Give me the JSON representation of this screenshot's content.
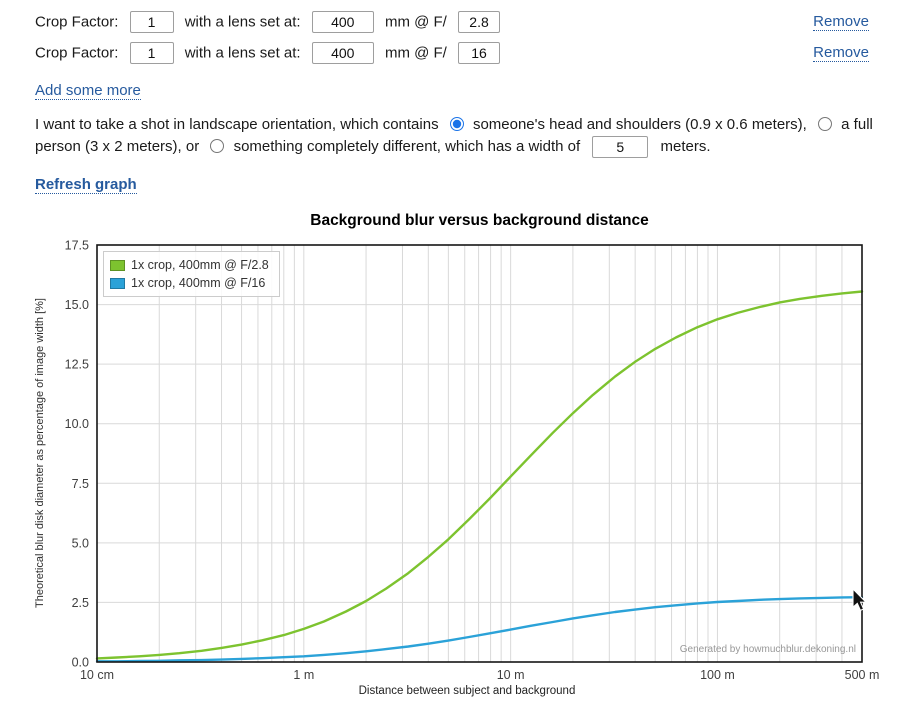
{
  "lens_rows": [
    {
      "label_prefix": "Crop Factor:",
      "crop_factor": "1",
      "label_mid": "with a lens set at:",
      "focal_length": "400",
      "label_aperture": "mm @ F/",
      "aperture": "2.8",
      "remove_label": "Remove"
    },
    {
      "label_prefix": "Crop Factor:",
      "crop_factor": "1",
      "label_mid": "with a lens set at:",
      "focal_length": "400",
      "label_aperture": "mm @ F/",
      "aperture": "16",
      "remove_label": "Remove"
    }
  ],
  "add_more_label": "Add some more",
  "framing": {
    "intro": "I want to take a shot in landscape orientation, which contains",
    "option_head": "someone's head and shoulders (0.9 x 0.6 meters),",
    "option_person": "a full person (3 x 2 meters), or",
    "option_custom": "something completely different, which has a width of",
    "custom_width": "5",
    "outro": "meters.",
    "selected_option": "head_and_shoulders"
  },
  "refresh_label": "Refresh graph",
  "colors": {
    "link": "#265a9e",
    "series_green": "#7dc32f",
    "series_blue": "#2ba2d8",
    "grid": "#d9d9d9",
    "frame": "#151515",
    "tick_text": "#3f3f3f",
    "radio_accent": "#1a73e8",
    "watermark_text": "#989898"
  },
  "chart_data": {
    "type": "line",
    "title": "Background blur versus background distance",
    "xlabel": "Distance between subject and background",
    "ylabel": "Theoretical blur disk diameter as percentage of image width [%]",
    "x_scale": "log",
    "xlim": [
      0.1,
      500
    ],
    "ylim": [
      0,
      17.5
    ],
    "grid": true,
    "legend_position": "top-left",
    "watermark": "Generated by howmuchblur.dekoning.nl",
    "xticks": [
      {
        "v": 0.1,
        "label": "10 cm"
      },
      {
        "v": 1,
        "label": "1 m"
      },
      {
        "v": 10,
        "label": "10 m"
      },
      {
        "v": 100,
        "label": "100 m"
      },
      {
        "v": 500,
        "label": "500 m"
      }
    ],
    "yticks": [
      {
        "v": 0,
        "label": "0.0"
      },
      {
        "v": 2.5,
        "label": "2.5"
      },
      {
        "v": 5,
        "label": "5.0"
      },
      {
        "v": 7.5,
        "label": "7.5"
      },
      {
        "v": 10,
        "label": "10.0"
      },
      {
        "v": 12.5,
        "label": "12.5"
      },
      {
        "v": 15,
        "label": "15.0"
      },
      {
        "v": 17.5,
        "label": "17.5"
      }
    ],
    "x": [
      0.1,
      0.125,
      0.16,
      0.2,
      0.25,
      0.32,
      0.4,
      0.5,
      0.63,
      0.8,
      1,
      1.25,
      1.6,
      2,
      2.5,
      3.2,
      4,
      5,
      6.3,
      8,
      10,
      12.5,
      16,
      20,
      25,
      32,
      40,
      50,
      63,
      80,
      100,
      125,
      160,
      200,
      250,
      320,
      400,
      500
    ],
    "series": [
      {
        "name": "1x crop, 400mm @ F/2.8",
        "color": "#7dc32f",
        "values": [
          0.15,
          0.19,
          0.24,
          0.3,
          0.37,
          0.47,
          0.59,
          0.73,
          0.91,
          1.13,
          1.39,
          1.7,
          2.12,
          2.56,
          3.08,
          3.73,
          4.41,
          5.15,
          5.99,
          6.9,
          7.78,
          8.66,
          9.62,
          10.44,
          11.21,
          11.98,
          12.6,
          13.14,
          13.62,
          14.05,
          14.38,
          14.65,
          14.9,
          15.09,
          15.24,
          15.37,
          15.47,
          15.55
        ]
      },
      {
        "name": "1x crop, 400mm @ F/16",
        "color": "#2ba2d8",
        "values": [
          0.03,
          0.03,
          0.04,
          0.05,
          0.07,
          0.08,
          0.1,
          0.13,
          0.16,
          0.2,
          0.24,
          0.3,
          0.37,
          0.45,
          0.54,
          0.65,
          0.77,
          0.9,
          1.05,
          1.21,
          1.36,
          1.52,
          1.68,
          1.83,
          1.96,
          2.1,
          2.2,
          2.3,
          2.38,
          2.46,
          2.52,
          2.56,
          2.61,
          2.64,
          2.67,
          2.69,
          2.71,
          2.72
        ]
      }
    ]
  }
}
